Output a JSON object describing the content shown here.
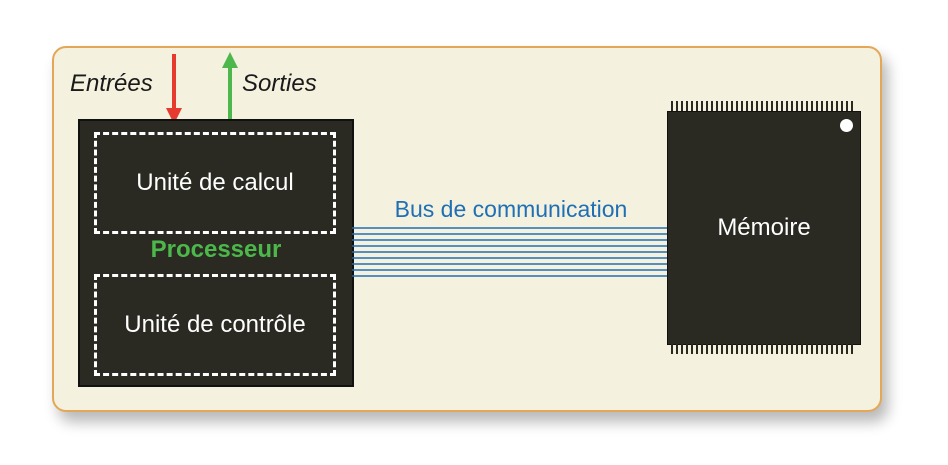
{
  "diagram": {
    "inputs_label": "Entrées",
    "outputs_label": "Sorties",
    "processor_label": "Processeur",
    "compute_unit_label": "Unité de calcul",
    "control_unit_label": "Unité de contrôle",
    "bus_label": "Bus de communication",
    "memory_label": "Mémoire"
  },
  "colors": {
    "panel_background": "#f4f1df",
    "panel_border": "#e3a857",
    "chip_fill": "#2a2a22",
    "input_arrow": "#e63a2e",
    "output_arrow": "#4cb74a",
    "processor_text": "#4cb74a",
    "bus": "#1f6fb5"
  },
  "icons": {
    "input": "arrow-down-icon",
    "output": "arrow-up-icon"
  }
}
